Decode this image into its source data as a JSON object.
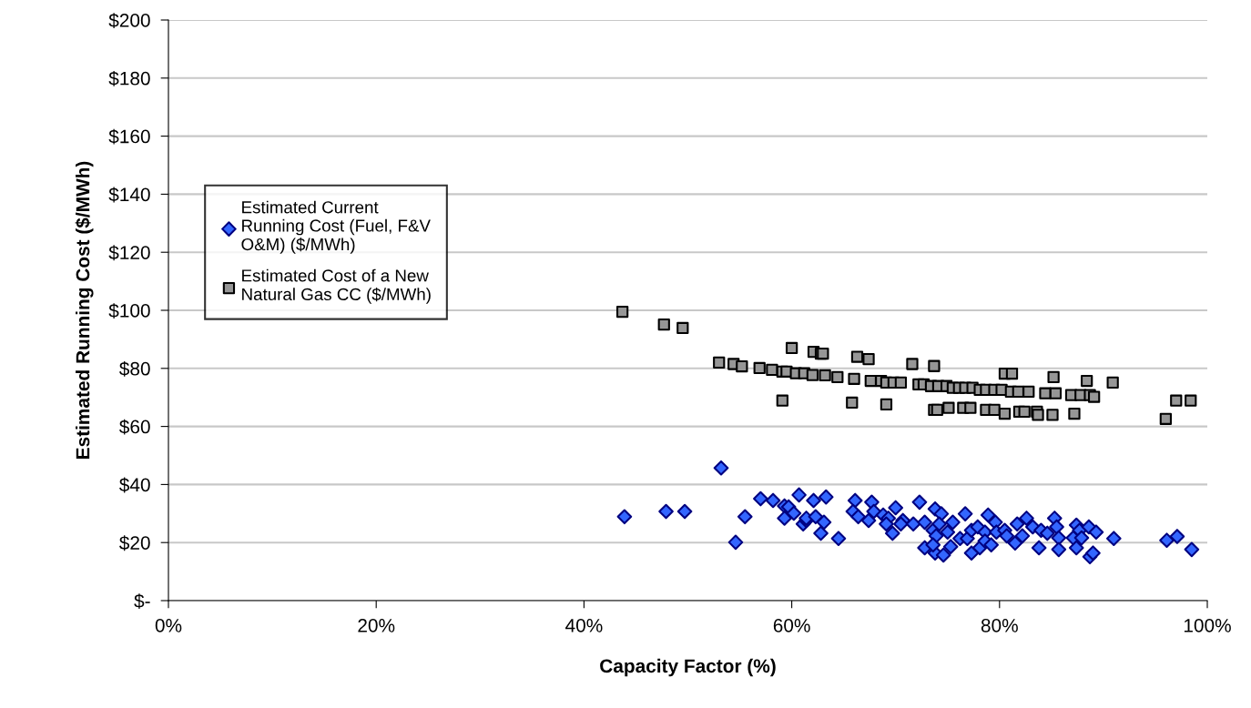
{
  "chart_data": {
    "type": "scatter",
    "xlabel": "Capacity Factor (%)",
    "ylabel": "Estimated Running Cost ($/MWh)",
    "xlim": [
      0,
      100
    ],
    "xticks": [
      {
        "value": 0,
        "label": "0%"
      },
      {
        "value": 20,
        "label": "20%"
      },
      {
        "value": 40,
        "label": "40%"
      },
      {
        "value": 60,
        "label": "60%"
      },
      {
        "value": 80,
        "label": "80%"
      },
      {
        "value": 100,
        "label": "100%"
      }
    ],
    "ylim": [
      0,
      200
    ],
    "yticks": [
      {
        "value": 0,
        "label": "$-"
      },
      {
        "value": 20,
        "label": "$20"
      },
      {
        "value": 40,
        "label": "$40"
      },
      {
        "value": 60,
        "label": "$60"
      },
      {
        "value": 80,
        "label": "$80"
      },
      {
        "value": 100,
        "label": "$100"
      },
      {
        "value": 120,
        "label": "$120"
      },
      {
        "value": 140,
        "label": "$140"
      },
      {
        "value": 160,
        "label": "$160"
      },
      {
        "value": 180,
        "label": "$180"
      },
      {
        "value": 200,
        "label": "$200"
      }
    ],
    "grid": "y",
    "legend": "center left",
    "series": [
      {
        "name": "Estimated Current Running Cost (Fuel, F&V O&M) ($/MWh)",
        "color": "#3366ff",
        "marker": "diamond",
        "x": [
          43.9,
          47.9,
          49.7,
          53.2,
          55.5,
          54.6,
          57.0,
          58.2,
          59.3,
          59.7,
          59.3,
          60.2,
          60.7,
          61.1,
          61.4,
          61.4,
          62.1,
          62.3,
          62.8,
          63.1,
          63.3,
          64.5,
          66.1,
          65.9,
          66.4,
          67.4,
          67.7,
          67.9,
          68.8,
          69.3,
          69.1,
          70.0,
          69.7,
          70.7,
          70.5,
          71.7,
          72.3,
          72.8,
          72.8,
          73.8,
          74.6,
          73.6,
          73.9,
          73.6,
          73.8,
          74.4,
          74.2,
          75.0,
          75.3,
          75.5,
          76.2,
          76.7,
          76.9,
          77.3,
          77.3,
          78.1,
          77.9,
          78.6,
          78.6,
          78.9,
          79.2,
          79.6,
          79.7,
          80.5,
          80.7,
          81.5,
          81.7,
          82.2,
          82.6,
          83.2,
          83.8,
          84.0,
          84.6,
          85.3,
          85.5,
          85.7,
          85.7,
          87.1,
          87.4,
          87.7,
          87.9,
          87.4,
          88.6,
          89.3,
          88.7,
          89.0,
          91.0,
          96.1,
          97.1,
          98.5
        ],
        "values": [
          28.9,
          30.7,
          30.7,
          45.7,
          28.9,
          20.1,
          35.1,
          34.5,
          32.6,
          32.3,
          28.4,
          30.1,
          36.4,
          26.4,
          27.6,
          28.4,
          34.5,
          28.9,
          23.2,
          27.0,
          35.7,
          21.4,
          34.5,
          30.7,
          28.9,
          27.6,
          33.9,
          30.7,
          29.5,
          28.4,
          26.4,
          32.0,
          23.2,
          27.6,
          26.4,
          26.4,
          33.9,
          27.0,
          18.2,
          16.4,
          15.7,
          24.2,
          22.3,
          19.2,
          31.6,
          29.9,
          26.4,
          23.6,
          18.6,
          27.0,
          21.4,
          29.9,
          21.4,
          24.2,
          16.4,
          18.2,
          25.4,
          23.6,
          20.5,
          29.5,
          19.2,
          27.0,
          23.6,
          24.2,
          22.3,
          19.8,
          26.4,
          22.3,
          28.4,
          25.4,
          18.2,
          24.2,
          23.2,
          28.4,
          25.4,
          21.6,
          17.6,
          21.6,
          26.0,
          24.2,
          21.6,
          18.2,
          25.4,
          23.6,
          15.1,
          16.4,
          21.4,
          20.8,
          22.1,
          17.6
        ]
      },
      {
        "name": "Estimated Cost of a New Natural Gas CC ($/MWh)",
        "color": "#969696",
        "marker": "square",
        "x": [
          43.7,
          47.7,
          49.5,
          53.0,
          54.4,
          55.2,
          56.9,
          58.1,
          59.1,
          59.5,
          59.1,
          60.0,
          60.4,
          61.2,
          62.0,
          62.1,
          62.8,
          63.0,
          63.2,
          64.4,
          66.0,
          65.8,
          66.3,
          67.4,
          67.6,
          68.6,
          69.1,
          69.8,
          70.5,
          69.1,
          71.6,
          72.2,
          72.7,
          73.4,
          74.1,
          74.9,
          73.7,
          73.7,
          74.0,
          75.1,
          75.5,
          76.1,
          76.7,
          77.4,
          76.5,
          77.2,
          78.1,
          78.7,
          79.5,
          80.2,
          78.7,
          79.5,
          80.5,
          81.2,
          80.5,
          81.1,
          81.8,
          82.8,
          81.9,
          82.4,
          83.6,
          83.7,
          84.4,
          85.4,
          85.1,
          85.2,
          86.9,
          87.8,
          88.7,
          89.1,
          87.2,
          88.4,
          90.9,
          96.0,
          97.0,
          98.4
        ],
        "values": [
          99.5,
          95.1,
          93.9,
          82.0,
          81.5,
          80.7,
          80.1,
          79.5,
          78.9,
          78.9,
          68.9,
          87.0,
          78.3,
          78.3,
          77.7,
          85.7,
          85.1,
          85.1,
          77.6,
          77.0,
          76.4,
          68.2,
          84.0,
          83.2,
          75.7,
          75.7,
          75.1,
          75.1,
          75.1,
          67.6,
          81.5,
          74.5,
          74.5,
          73.9,
          73.9,
          73.9,
          80.8,
          65.7,
          65.7,
          66.4,
          73.3,
          73.3,
          73.3,
          73.3,
          66.4,
          66.4,
          72.6,
          72.6,
          72.6,
          72.6,
          65.7,
          65.7,
          78.2,
          78.2,
          64.4,
          72.0,
          72.0,
          72.0,
          65.1,
          65.1,
          65.1,
          64.0,
          71.4,
          71.4,
          64.0,
          77.0,
          70.8,
          70.8,
          70.8,
          70.2,
          64.4,
          75.7,
          75.1,
          62.6,
          68.9,
          68.9
        ]
      }
    ]
  }
}
